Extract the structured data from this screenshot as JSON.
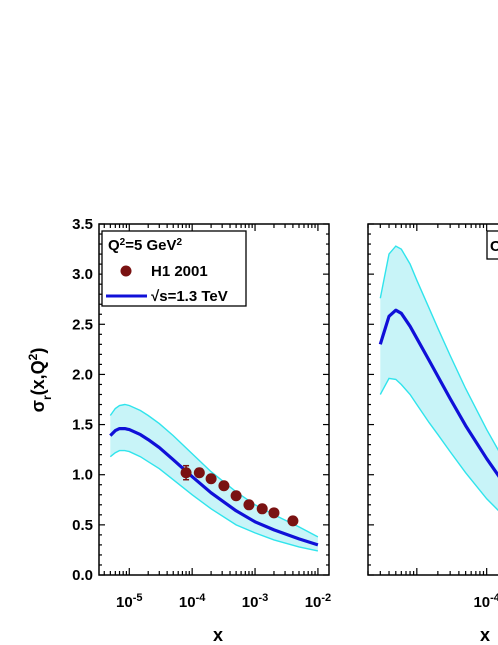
{
  "chart_data": [
    {
      "type": "line",
      "x_scale": "log",
      "xlim": [
        3.3e-06,
        0.015
      ],
      "ylim": [
        0.0,
        3.5
      ],
      "ylabel": "σr(x,Q²)",
      "xlabel": "x",
      "y_ticks": [
        "0.0",
        "0.5",
        "1.0",
        "1.5",
        "2.0",
        "2.5",
        "3.0",
        "3.5"
      ],
      "x_ticks": [
        {
          "base": "10",
          "exp": "-5"
        },
        {
          "base": "10",
          "exp": "-4"
        },
        {
          "base": "10",
          "exp": "-3"
        },
        {
          "base": "10",
          "exp": "-2"
        }
      ],
      "legend": {
        "position": "top-left",
        "q2_label": {
          "pre": "Q",
          "sup1": "2",
          "mid": "=5 GeV",
          "sup2": "2"
        },
        "data_label": "H1 2001",
        "curve_label_pre": "√s",
        "curve_label_post": "=1.3 TeV"
      },
      "colors": {
        "curve": "#1010d8",
        "band_fill": "#c8f4f8",
        "band_edge": "#30e4ec",
        "points": "#7a1212"
      },
      "series": [
        {
          "name": "√s=1.3 TeV",
          "kind": "line",
          "x": [
            5e-06,
            6e-06,
            7e-06,
            8.5e-06,
            1e-05,
            1.5e-05,
            2e-05,
            3e-05,
            5e-05,
            0.0001,
            0.0002,
            0.0005,
            0.001,
            0.002,
            0.005,
            0.01
          ],
          "y": [
            1.39,
            1.44,
            1.46,
            1.46,
            1.45,
            1.4,
            1.35,
            1.27,
            1.15,
            0.98,
            0.82,
            0.64,
            0.53,
            0.45,
            0.36,
            0.3
          ]
        },
        {
          "name": "band-upper",
          "kind": "band",
          "x": [
            5e-06,
            6e-06,
            7e-06,
            8.5e-06,
            1e-05,
            1.5e-05,
            2e-05,
            3e-05,
            5e-05,
            0.0001,
            0.0002,
            0.0005,
            0.001,
            0.002,
            0.005,
            0.01
          ],
          "y": [
            1.59,
            1.66,
            1.69,
            1.7,
            1.69,
            1.64,
            1.59,
            1.51,
            1.39,
            1.21,
            1.03,
            0.83,
            0.7,
            0.6,
            0.48,
            0.38
          ]
        },
        {
          "name": "band-lower",
          "kind": "band",
          "x": [
            5e-06,
            6e-06,
            7e-06,
            8.5e-06,
            1e-05,
            1.5e-05,
            2e-05,
            3e-05,
            5e-05,
            0.0001,
            0.0002,
            0.0005,
            0.001,
            0.002,
            0.005,
            0.01
          ],
          "y": [
            1.18,
            1.22,
            1.24,
            1.24,
            1.23,
            1.18,
            1.13,
            1.06,
            0.95,
            0.8,
            0.66,
            0.5,
            0.42,
            0.35,
            0.28,
            0.24
          ]
        },
        {
          "name": "H1 2001",
          "kind": "points",
          "x": [
            8e-05,
            0.00013,
            0.0002,
            0.00032,
            0.0005,
            0.0008,
            0.0013,
            0.002,
            0.004
          ],
          "y": [
            1.02,
            1.02,
            0.96,
            0.89,
            0.79,
            0.7,
            0.66,
            0.62,
            0.54
          ],
          "err": [
            0.07,
            0.04,
            0.03,
            0.03,
            0.03,
            0.02,
            0.02,
            0.02,
            0.02
          ]
        }
      ]
    },
    {
      "type": "line",
      "x_scale": "log",
      "xlim": [
        2e-06,
        0.0003
      ],
      "ylim": [
        0.0,
        3.5
      ],
      "xlabel": "x",
      "x_ticks": [
        {
          "base": "10",
          "exp": "-4"
        },
        {
          "base": "10",
          "exp": ""
        }
      ],
      "legend_partial": "C",
      "colors": {
        "curve": "#1010d8",
        "band_fill": "#c8f4f8",
        "band_edge": "#30e4ec"
      },
      "series": [
        {
          "name": "central",
          "kind": "line",
          "x": [
            3e-06,
            4e-06,
            5e-06,
            6e-06,
            8e-06,
            1e-05,
            1.5e-05,
            2e-05,
            3e-05,
            5e-05,
            0.0001,
            0.0002
          ],
          "y": [
            2.3,
            2.58,
            2.64,
            2.61,
            2.48,
            2.36,
            2.14,
            1.98,
            1.76,
            1.49,
            1.16,
            0.86
          ]
        },
        {
          "name": "band-upper",
          "kind": "band",
          "x": [
            3e-06,
            4e-06,
            5e-06,
            6e-06,
            8e-06,
            1e-05,
            1.5e-05,
            2e-05,
            3e-05,
            5e-05,
            0.0001,
            0.0002
          ],
          "y": [
            2.76,
            3.2,
            3.28,
            3.25,
            3.1,
            2.94,
            2.66,
            2.46,
            2.19,
            1.86,
            1.45,
            1.08
          ]
        },
        {
          "name": "band-lower",
          "kind": "band",
          "x": [
            3e-06,
            4e-06,
            5e-06,
            6e-06,
            8e-06,
            1e-05,
            1.5e-05,
            2e-05,
            3e-05,
            5e-05,
            0.0001,
            0.0002
          ],
          "y": [
            1.8,
            1.96,
            1.95,
            1.9,
            1.8,
            1.7,
            1.52,
            1.4,
            1.23,
            1.02,
            0.76,
            0.55
          ]
        }
      ]
    }
  ]
}
